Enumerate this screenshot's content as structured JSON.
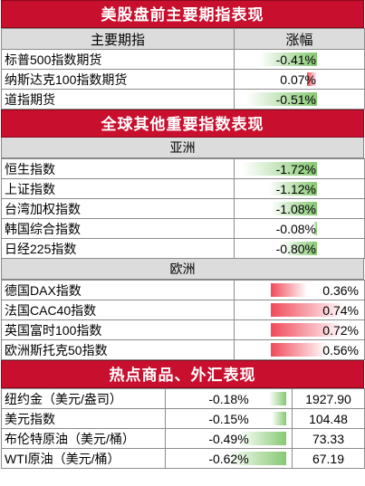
{
  "sec_us": "美股盘前主要期指表现",
  "us_head": {
    "name": "主要期指",
    "chg": "涨幅"
  },
  "us_rows": [
    {
      "name": "标普500指数期货",
      "chg": "-0.41%",
      "v": -0.41
    },
    {
      "name": "纳斯达克100指数期货",
      "chg": "0.07%",
      "v": 0.07
    },
    {
      "name": "道指期货",
      "chg": "-0.51%",
      "v": -0.51
    }
  ],
  "sec_global": "全球其他重要指数表现",
  "asia_label": "亚洲",
  "asia_rows": [
    {
      "name": "恒生指数",
      "chg": "-1.72%",
      "v": -1.72
    },
    {
      "name": "上证指数",
      "chg": "-1.12%",
      "v": -1.12
    },
    {
      "name": "台湾加权指数",
      "chg": "-1.08%",
      "v": -1.08
    },
    {
      "name": "韩国综合指数",
      "chg": "-0.08%",
      "v": -0.08
    },
    {
      "name": "日经225指数",
      "chg": "-0.80%",
      "v": -0.8
    }
  ],
  "europe_label": "欧洲",
  "europe_rows": [
    {
      "name": "德国DAX指数",
      "chg": "0.36%",
      "v": 0.36
    },
    {
      "name": "法国CAC40指数",
      "chg": "0.74%",
      "v": 0.74
    },
    {
      "name": "英国富时100指数",
      "chg": "0.72%",
      "v": 0.72
    },
    {
      "name": "欧洲斯托克50指数",
      "chg": "0.56%",
      "v": 0.56
    }
  ],
  "sec_comm": "热点商品、外汇表现",
  "comm_rows": [
    {
      "name": "纽约金（美元/盎司）",
      "chg": "-0.18%",
      "v": -0.18,
      "price": "1927.90"
    },
    {
      "name": "美元指数",
      "chg": "-0.15%",
      "v": -0.15,
      "price": "104.48"
    },
    {
      "name": "布伦特原油（美元/桶）",
      "chg": "-0.49%",
      "v": -0.49,
      "price": "73.33"
    },
    {
      "name": "WTI原油（美元/桶）",
      "chg": "-0.62%",
      "v": -0.62,
      "price": "67.19"
    }
  ],
  "colors": {
    "header_red": "#c8102e",
    "neg_bar": "#86c972",
    "pos_bar": "#f04a5a",
    "subheader_gray": "#dcdcdc"
  }
}
